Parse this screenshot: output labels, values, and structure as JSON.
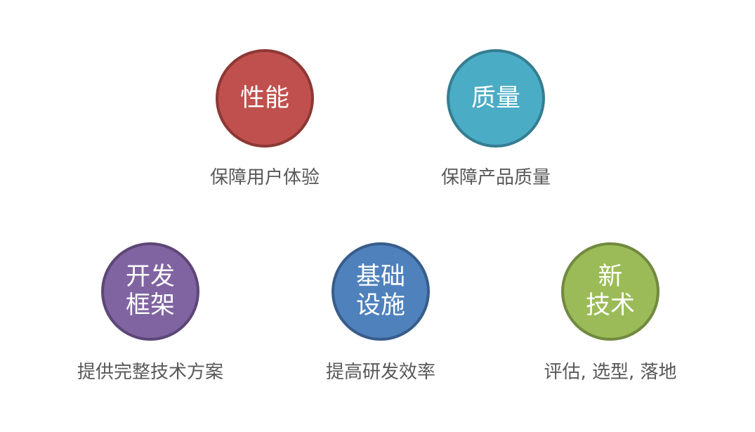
{
  "nodes": [
    {
      "id": "performance",
      "lines": [
        "性能"
      ],
      "caption": "保障用户体验",
      "fill": "#c0504d",
      "stroke": "#8c3836"
    },
    {
      "id": "quality",
      "lines": [
        "质量"
      ],
      "caption": "保障产品质量",
      "fill": "#4bacc6",
      "stroke": "#357d91"
    },
    {
      "id": "dev-framework",
      "lines": [
        "开发",
        "框架"
      ],
      "caption": "提供完整技术方案",
      "fill": "#8064a2",
      "stroke": "#5c4776"
    },
    {
      "id": "infrastructure",
      "lines": [
        "基础",
        "设施"
      ],
      "caption": "提高研发效率",
      "fill": "#4f81bd",
      "stroke": "#385d8a"
    },
    {
      "id": "new-tech",
      "lines": [
        "新",
        "技术"
      ],
      "caption": "评估, 选型, 落地",
      "fill": "#9bbb59",
      "stroke": "#71893f"
    }
  ]
}
